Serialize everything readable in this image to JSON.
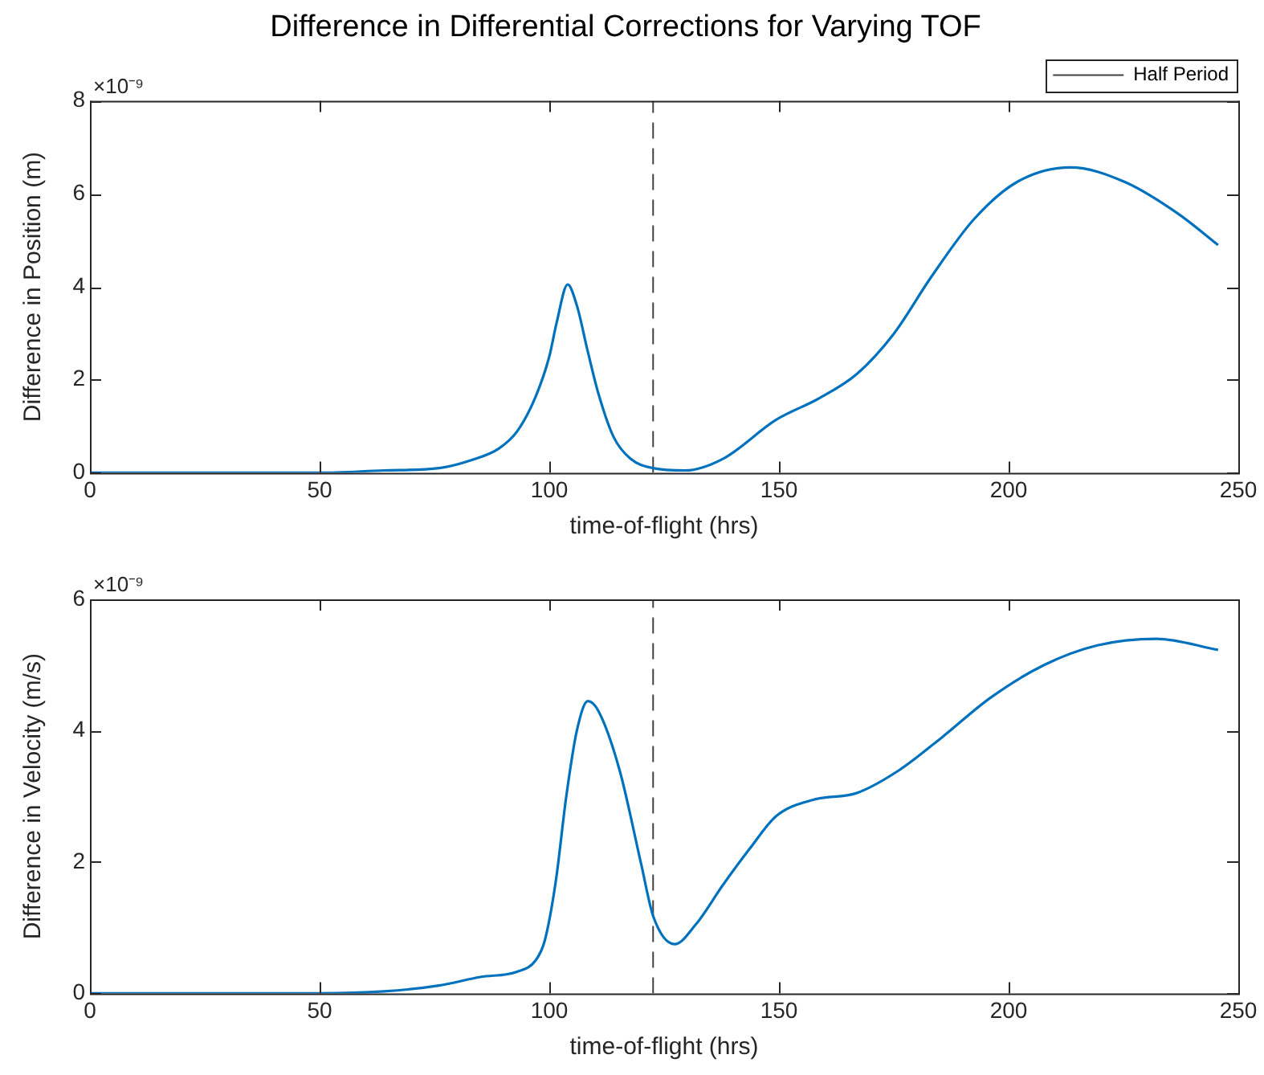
{
  "chart_data": [
    {
      "type": "line",
      "title": "Difference in Differential Corrections for Varying TOF",
      "xlabel": "time-of-flight (hrs)",
      "ylabel": "Difference in Position (m)",
      "annotations": [
        "×10⁻⁹"
      ],
      "legend": "top right",
      "xlim": [
        0,
        250
      ],
      "xticks": [
        0,
        50,
        100,
        150,
        200,
        250
      ],
      "ylim": [
        0,
        8
      ],
      "yticks": [
        0,
        2,
        4,
        6,
        8
      ],
      "ref_lines": [
        {
          "axis": "x",
          "value": 122.6,
          "label": "Half Period",
          "color": "#404040",
          "line_style": "dashed"
        }
      ],
      "series": [
        {
          "color": "#0072bd",
          "x": [
            0,
            50,
            64,
            76,
            83,
            89,
            93,
            97,
            100,
            101.6,
            104,
            106,
            108.4,
            110.7,
            114,
            117.7,
            122.6,
            129.6,
            137.8,
            149.4,
            158.7,
            166.9,
            175,
            183.2,
            192.5,
            201.9,
            213.5,
            225.2,
            236.8,
            245.6
          ],
          "values": [
            0,
            0,
            0.05,
            0.1,
            0.27,
            0.52,
            0.89,
            1.63,
            2.5,
            3.23,
            4.05,
            3.6,
            2.6,
            1.7,
            0.77,
            0.3,
            0.1,
            0.05,
            0.3,
            1.14,
            1.6,
            2.12,
            2.99,
            4.22,
            5.46,
            6.26,
            6.57,
            6.26,
            5.58,
            4.9
          ]
        }
      ]
    },
    {
      "type": "line",
      "xlabel": "time-of-flight (hrs)",
      "ylabel": "Difference in Velocity (m/s)",
      "annotations": [
        "×10⁻⁹"
      ],
      "xlim": [
        0,
        250
      ],
      "xticks": [
        0,
        50,
        100,
        150,
        200,
        250
      ],
      "ylim": [
        0,
        6
      ],
      "yticks": [
        0,
        2,
        4,
        6
      ],
      "ref_lines": [
        {
          "axis": "x",
          "value": 122.6,
          "color": "#404040",
          "line_style": "dashed"
        }
      ],
      "series": [
        {
          "color": "#0072bd",
          "x": [
            0,
            50,
            64,
            76,
            85,
            93,
            97,
            99,
            101.4,
            103.7,
            106,
            108.4,
            110.7,
            115.3,
            120,
            122.6,
            127.3,
            131.9,
            137.8,
            143.6,
            149.4,
            157.6,
            166.9,
            176.2,
            185.5,
            196,
            207.7,
            219.3,
            232.2,
            245.6
          ],
          "values": [
            0,
            0,
            0.03,
            0.12,
            0.25,
            0.33,
            0.5,
            0.8,
            1.7,
            3.0,
            4.0,
            4.45,
            4.3,
            3.4,
            1.97,
            1.18,
            0.75,
            1.05,
            1.65,
            2.2,
            2.7,
            2.95,
            3.05,
            3.4,
            3.9,
            4.5,
            5.0,
            5.3,
            5.4,
            5.23
          ]
        }
      ]
    }
  ]
}
